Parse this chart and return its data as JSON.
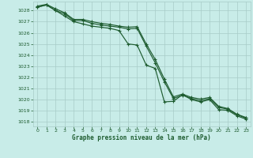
{
  "title": "Graphe pression niveau de la mer (hPa)",
  "bg_color": "#c8ece8",
  "grid_color": "#a8ccc8",
  "line_color": "#1e5c30",
  "xlim": [
    -0.5,
    23.5
  ],
  "ylim": [
    1017.6,
    1028.8
  ],
  "yticks": [
    1018,
    1019,
    1020,
    1021,
    1022,
    1023,
    1024,
    1025,
    1026,
    1027,
    1028
  ],
  "xticks": [
    0,
    1,
    2,
    3,
    4,
    5,
    6,
    7,
    8,
    9,
    10,
    11,
    12,
    13,
    14,
    15,
    16,
    17,
    18,
    19,
    20,
    21,
    22,
    23
  ],
  "line1_x": [
    0,
    1,
    2,
    3,
    4,
    5,
    6,
    7,
    8,
    9,
    10,
    11,
    12,
    13,
    14,
    15,
    16,
    17,
    18,
    19,
    20,
    21,
    22,
    23
  ],
  "line1": [
    1028.3,
    1028.5,
    1028.0,
    1027.7,
    1027.1,
    1027.1,
    1026.85,
    1026.7,
    1026.6,
    1026.5,
    1026.35,
    1026.4,
    1024.8,
    1023.3,
    1021.6,
    1020.1,
    1020.4,
    1020.1,
    1019.9,
    1020.1,
    1019.3,
    1019.15,
    1018.65,
    1018.35
  ],
  "line2_x": [
    0,
    1,
    2,
    3,
    4,
    5,
    6,
    7,
    8,
    9,
    10,
    11,
    12,
    13,
    14,
    15,
    16,
    17,
    18,
    19,
    20,
    21,
    22,
    23
  ],
  "line2": [
    1028.3,
    1028.5,
    1028.0,
    1027.5,
    1027.0,
    1026.8,
    1026.6,
    1026.5,
    1026.4,
    1026.2,
    1025.0,
    1024.9,
    1023.1,
    1022.8,
    1019.8,
    1019.85,
    1020.45,
    1020.0,
    1019.8,
    1020.0,
    1019.1,
    1019.05,
    1018.55,
    1018.25
  ],
  "line3_x": [
    0,
    1,
    2,
    3,
    4,
    5,
    6,
    7,
    8,
    9,
    10,
    11,
    12,
    13,
    14,
    15,
    16,
    17,
    18,
    19,
    20,
    21,
    22,
    23
  ],
  "line3": [
    1028.4,
    1028.55,
    1028.15,
    1027.8,
    1027.2,
    1027.2,
    1027.0,
    1026.85,
    1026.75,
    1026.6,
    1026.5,
    1026.55,
    1025.0,
    1023.6,
    1021.85,
    1020.25,
    1020.5,
    1020.2,
    1020.05,
    1020.2,
    1019.4,
    1019.2,
    1018.7,
    1018.4
  ]
}
